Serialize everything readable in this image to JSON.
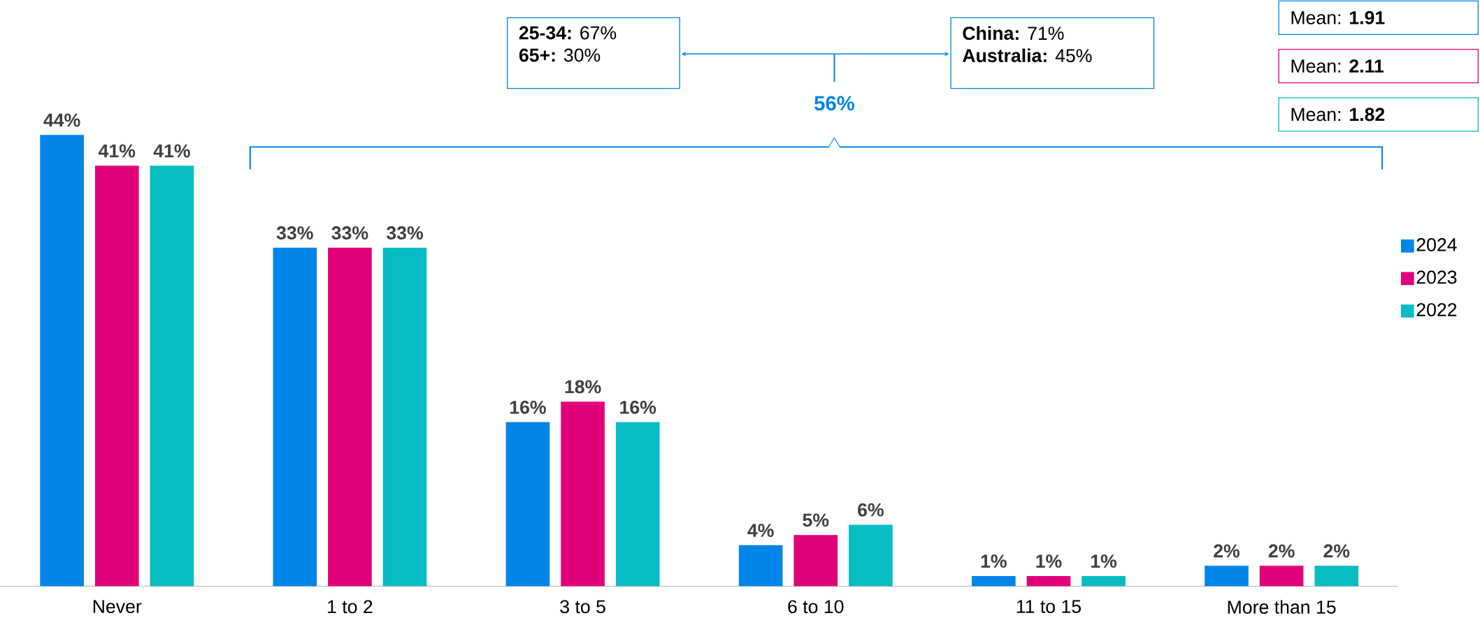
{
  "chart_data": {
    "type": "bar",
    "categories": [
      "Never",
      "1 to 2",
      "3 to 5",
      "6 to 10",
      "11 to 15",
      "More than 15"
    ],
    "series": [
      {
        "name": "2024",
        "color": "#0085e8",
        "values": [
          44,
          33,
          16,
          4,
          1,
          2
        ],
        "value_labels": [
          "44%",
          "33%",
          "16%",
          "4%",
          "1%",
          "2%"
        ]
      },
      {
        "name": "2023",
        "color": "#e2007a",
        "values": [
          41,
          33,
          18,
          5,
          1,
          2
        ],
        "value_labels": [
          "41%",
          "33%",
          "18%",
          "5%",
          "1%",
          "2%"
        ]
      },
      {
        "name": "2022",
        "color": "#08bcc4",
        "values": [
          41,
          33,
          16,
          6,
          1,
          2
        ],
        "value_labels": [
          "41%",
          "33%",
          "16%",
          "6%",
          "1%",
          "2%"
        ]
      }
    ],
    "legend": "right",
    "annotations": [
      "**25-34:** 67%",
      "**65+:** 30%",
      "**China:** 71%",
      "**Australia:** 45%",
      "56%",
      "Mean: **1.91**",
      "Mean: **2.11**",
      "Mean: **1.82**"
    ]
  }
}
